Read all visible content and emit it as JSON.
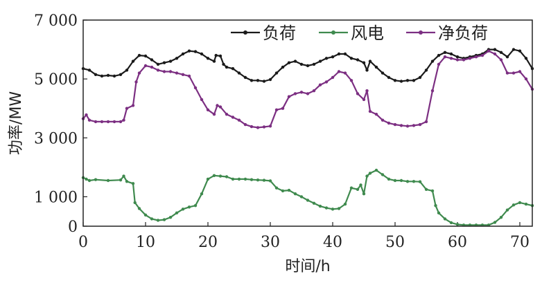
{
  "chart_data": {
    "type": "line",
    "xlabel": "时间/h",
    "ylabel": "功率/MW",
    "xlim": [
      0,
      72
    ],
    "ylim": [
      0,
      7000
    ],
    "x_ticks": [
      0,
      10,
      20,
      30,
      40,
      50,
      60,
      70
    ],
    "y_ticks": [
      0,
      1000,
      3000,
      5000,
      7000
    ],
    "x_tick_labels": [
      "0",
      "10",
      "20",
      "30",
      "40",
      "50",
      "60",
      "70"
    ],
    "y_tick_labels": [
      "0",
      "1 000",
      "3 000",
      "5 000",
      "7 000"
    ],
    "grid": false,
    "legend_position": "top-right",
    "series": [
      {
        "name": "负荷",
        "color": "#1a1a1a",
        "points": [
          [
            0,
            5350
          ],
          [
            1,
            5300
          ],
          [
            2,
            5150
          ],
          [
            3,
            5100
          ],
          [
            4,
            5120
          ],
          [
            5,
            5100
          ],
          [
            6,
            5150
          ],
          [
            7,
            5300
          ],
          [
            8,
            5600
          ],
          [
            9,
            5800
          ],
          [
            10,
            5780
          ],
          [
            11,
            5650
          ],
          [
            12,
            5500
          ],
          [
            13,
            5550
          ],
          [
            14,
            5600
          ],
          [
            15,
            5700
          ],
          [
            16,
            5850
          ],
          [
            17,
            5950
          ],
          [
            18,
            5930
          ],
          [
            19,
            5850
          ],
          [
            20,
            5700
          ],
          [
            21,
            5600
          ],
          [
            21.3,
            5800
          ],
          [
            22,
            5780
          ],
          [
            22.5,
            5500
          ],
          [
            23,
            5400
          ],
          [
            24,
            5350
          ],
          [
            25,
            5200
          ],
          [
            26,
            5050
          ],
          [
            27,
            4950
          ],
          [
            28,
            4950
          ],
          [
            29,
            4920
          ],
          [
            30,
            4980
          ],
          [
            31,
            5200
          ],
          [
            32,
            5400
          ],
          [
            33,
            5550
          ],
          [
            34,
            5600
          ],
          [
            35,
            5500
          ],
          [
            36,
            5450
          ],
          [
            37,
            5500
          ],
          [
            38,
            5600
          ],
          [
            39,
            5700
          ],
          [
            40,
            5750
          ],
          [
            41,
            5850
          ],
          [
            42,
            5850
          ],
          [
            43,
            5700
          ],
          [
            44,
            5650
          ],
          [
            45,
            5550
          ],
          [
            45.5,
            5300
          ],
          [
            46,
            5600
          ],
          [
            47,
            5400
          ],
          [
            48,
            5200
          ],
          [
            49,
            5050
          ],
          [
            50,
            4950
          ],
          [
            51,
            4920
          ],
          [
            52,
            4950
          ],
          [
            53,
            4950
          ],
          [
            54,
            5050
          ],
          [
            55,
            5300
          ],
          [
            56,
            5600
          ],
          [
            57,
            5800
          ],
          [
            58,
            5900
          ],
          [
            59,
            5850
          ],
          [
            60,
            5750
          ],
          [
            61,
            5700
          ],
          [
            62,
            5750
          ],
          [
            63,
            5800
          ],
          [
            64,
            5850
          ],
          [
            65,
            6000
          ],
          [
            66,
            6000
          ],
          [
            67,
            5900
          ],
          [
            68,
            5750
          ],
          [
            69,
            6000
          ],
          [
            70,
            5950
          ],
          [
            71,
            5700
          ],
          [
            72,
            5350
          ]
        ]
      },
      {
        "name": "风电",
        "color": "#3f8a4e",
        "points": [
          [
            0,
            1650
          ],
          [
            0.5,
            1600
          ],
          [
            1,
            1550
          ],
          [
            2,
            1580
          ],
          [
            4,
            1550
          ],
          [
            6,
            1570
          ],
          [
            6.5,
            1700
          ],
          [
            7,
            1520
          ],
          [
            8,
            1450
          ],
          [
            8.3,
            800
          ],
          [
            9,
            600
          ],
          [
            10,
            380
          ],
          [
            11,
            250
          ],
          [
            12,
            200
          ],
          [
            13,
            220
          ],
          [
            14,
            300
          ],
          [
            15,
            450
          ],
          [
            16,
            580
          ],
          [
            17,
            650
          ],
          [
            18,
            700
          ],
          [
            19,
            1100
          ],
          [
            20,
            1600
          ],
          [
            21,
            1720
          ],
          [
            22,
            1700
          ],
          [
            23,
            1680
          ],
          [
            24,
            1600
          ],
          [
            25,
            1600
          ],
          [
            26,
            1600
          ],
          [
            27,
            1580
          ],
          [
            28,
            1570
          ],
          [
            29,
            1560
          ],
          [
            30,
            1540
          ],
          [
            31,
            1300
          ],
          [
            32,
            1200
          ],
          [
            33,
            1220
          ],
          [
            34,
            1100
          ],
          [
            35,
            1000
          ],
          [
            36,
            880
          ],
          [
            37,
            780
          ],
          [
            38,
            680
          ],
          [
            39,
            620
          ],
          [
            40,
            580
          ],
          [
            41,
            600
          ],
          [
            42,
            750
          ],
          [
            43,
            1300
          ],
          [
            44,
            1250
          ],
          [
            44.5,
            1400
          ],
          [
            45,
            1100
          ],
          [
            45.5,
            1700
          ],
          [
            46,
            1800
          ],
          [
            47,
            1900
          ],
          [
            48,
            1750
          ],
          [
            49,
            1600
          ],
          [
            50,
            1550
          ],
          [
            51,
            1550
          ],
          [
            52,
            1520
          ],
          [
            53,
            1520
          ],
          [
            54,
            1510
          ],
          [
            55,
            1250
          ],
          [
            56,
            1200
          ],
          [
            56.5,
            700
          ],
          [
            57,
            450
          ],
          [
            58,
            250
          ],
          [
            59,
            120
          ],
          [
            60,
            60
          ],
          [
            61,
            40
          ],
          [
            62,
            40
          ],
          [
            63,
            40
          ],
          [
            64,
            40
          ],
          [
            65,
            40
          ],
          [
            66,
            130
          ],
          [
            67,
            300
          ],
          [
            68,
            550
          ],
          [
            69,
            720
          ],
          [
            70,
            800
          ],
          [
            71,
            750
          ],
          [
            72,
            700
          ]
        ]
      },
      {
        "name": "净负荷",
        "color": "#7c2f82",
        "points": [
          [
            0,
            3650
          ],
          [
            0.5,
            3780
          ],
          [
            1,
            3600
          ],
          [
            2,
            3550
          ],
          [
            3,
            3550
          ],
          [
            4,
            3550
          ],
          [
            5,
            3550
          ],
          [
            6,
            3550
          ],
          [
            6.5,
            3600
          ],
          [
            7,
            4000
          ],
          [
            8,
            4100
          ],
          [
            8.5,
            4900
          ],
          [
            9,
            5200
          ],
          [
            10,
            5450
          ],
          [
            11,
            5400
          ],
          [
            12,
            5300
          ],
          [
            13,
            5250
          ],
          [
            14,
            5250
          ],
          [
            15,
            5200
          ],
          [
            16,
            5150
          ],
          [
            17,
            5100
          ],
          [
            18,
            4700
          ],
          [
            19,
            4300
          ],
          [
            20,
            3950
          ],
          [
            21,
            3800
          ],
          [
            21.5,
            4100
          ],
          [
            22,
            4050
          ],
          [
            23,
            3800
          ],
          [
            24,
            3700
          ],
          [
            25,
            3600
          ],
          [
            26,
            3450
          ],
          [
            27,
            3380
          ],
          [
            28,
            3350
          ],
          [
            29,
            3370
          ],
          [
            30,
            3400
          ],
          [
            31,
            3950
          ],
          [
            32,
            4000
          ],
          [
            33,
            4400
          ],
          [
            34,
            4500
          ],
          [
            35,
            4550
          ],
          [
            36,
            4500
          ],
          [
            37,
            4600
          ],
          [
            38,
            4800
          ],
          [
            39,
            4900
          ],
          [
            40,
            5050
          ],
          [
            41,
            5250
          ],
          [
            42,
            5200
          ],
          [
            43,
            4950
          ],
          [
            44,
            4500
          ],
          [
            45,
            4300
          ],
          [
            45.5,
            4600
          ],
          [
            46,
            3900
          ],
          [
            47,
            3800
          ],
          [
            48,
            3600
          ],
          [
            49,
            3500
          ],
          [
            50,
            3450
          ],
          [
            51,
            3420
          ],
          [
            52,
            3400
          ],
          [
            53,
            3420
          ],
          [
            54,
            3450
          ],
          [
            55,
            3550
          ],
          [
            56,
            4600
          ],
          [
            57,
            5500
          ],
          [
            58,
            5750
          ],
          [
            59,
            5700
          ],
          [
            60,
            5650
          ],
          [
            61,
            5650
          ],
          [
            62,
            5700
          ],
          [
            63,
            5750
          ],
          [
            64,
            5800
          ],
          [
            65,
            5950
          ],
          [
            66,
            5850
          ],
          [
            67,
            5650
          ],
          [
            68,
            5200
          ],
          [
            69,
            5200
          ],
          [
            70,
            5250
          ],
          [
            71,
            5000
          ],
          [
            72,
            4650
          ]
        ]
      }
    ]
  }
}
